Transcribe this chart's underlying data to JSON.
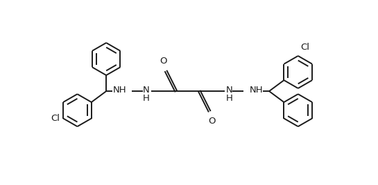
{
  "bg_color": "#ffffff",
  "line_color": "#1a1a1a",
  "line_width": 1.4,
  "font_size": 9.5,
  "fig_width": 5.45,
  "fig_height": 2.68,
  "dpi": 100,
  "xlim": [
    -1,
    11
  ],
  "ylim": [
    -1,
    6
  ]
}
